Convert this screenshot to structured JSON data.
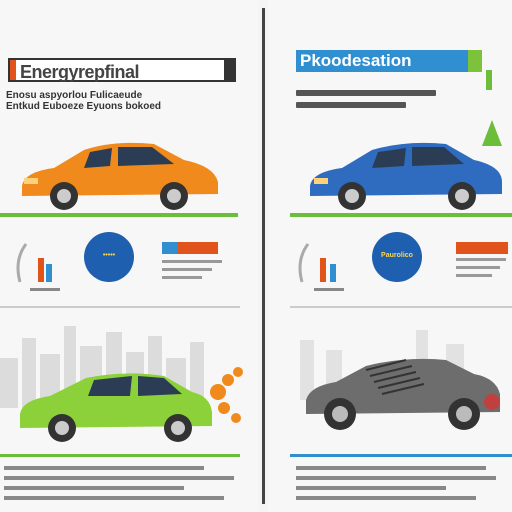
{
  "left_panel": {
    "title": "Energyrepfinal",
    "subtitle_lines": [
      "Enosu aspyorlou Fulicaeude",
      "Entkud Euboeze Eyuons bokoed"
    ]
  },
  "right_panel": {
    "title": "Pkoodesation",
    "circle_label": "Paurolico"
  },
  "colors": {
    "accent_blue": "#2f8fd0",
    "accent_green": "#6cbd3a",
    "accent_orange": "#f08a1c",
    "accent_red": "#e0541c"
  }
}
